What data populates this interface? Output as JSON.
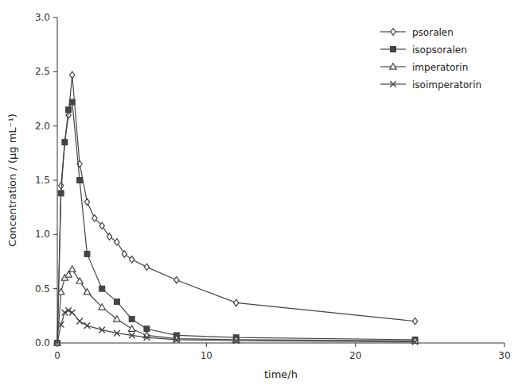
{
  "chart_data": {
    "type": "line",
    "xlabel": "time/h",
    "ylabel": "Concentration / (μg mL⁻¹)",
    "series": [
      {
        "name": "psoralen",
        "color": "#444444",
        "marker": "diamond-open",
        "x": [
          0,
          0.25,
          0.5,
          0.75,
          1.0,
          1.5,
          2.0,
          2.5,
          3.0,
          3.5,
          4.0,
          4.5,
          5.0,
          6.0,
          8.0,
          12.0,
          24.0
        ],
        "values": [
          0,
          1.45,
          1.85,
          2.1,
          2.47,
          1.65,
          1.3,
          1.15,
          1.08,
          0.98,
          0.93,
          0.82,
          0.77,
          0.7,
          0.58,
          0.37,
          0.2
        ]
      },
      {
        "name": "isopsoralen",
        "color": "#444444",
        "marker": "square",
        "x": [
          0,
          0.25,
          0.5,
          0.75,
          1.0,
          1.5,
          2.0,
          3.0,
          4.0,
          5.0,
          6.0,
          8.0,
          12.0,
          24.0
        ],
        "values": [
          0,
          1.38,
          1.85,
          2.15,
          2.22,
          1.5,
          0.82,
          0.5,
          0.38,
          0.22,
          0.13,
          0.07,
          0.05,
          0.03
        ]
      },
      {
        "name": "imperatorin",
        "color": "#444444",
        "marker": "triangle-open",
        "x": [
          0,
          0.25,
          0.5,
          0.75,
          1.0,
          1.5,
          2.0,
          3.0,
          4.0,
          5.0,
          6.0,
          8.0,
          12.0,
          24.0
        ],
        "values": [
          0,
          0.47,
          0.6,
          0.63,
          0.68,
          0.57,
          0.47,
          0.33,
          0.22,
          0.13,
          0.07,
          0.04,
          0.03,
          0.02
        ]
      },
      {
        "name": "isoimperatorin",
        "color": "#444444",
        "marker": "x",
        "x": [
          0,
          0.25,
          0.5,
          0.75,
          1.0,
          1.5,
          2.0,
          3.0,
          4.0,
          5.0,
          6.0,
          8.0,
          12.0,
          24.0
        ],
        "values": [
          0,
          0.17,
          0.28,
          0.3,
          0.28,
          0.2,
          0.16,
          0.12,
          0.09,
          0.07,
          0.05,
          0.03,
          0.02,
          0.01
        ]
      }
    ],
    "xlim": [
      0,
      30
    ],
    "ylim": [
      0,
      3.0
    ],
    "xticks": [
      0,
      10,
      20,
      30
    ],
    "yticks": [
      {
        "value": 0,
        "label": "0.0"
      },
      0.5,
      {
        "value": 1.0,
        "label": "1.0"
      },
      1.5,
      {
        "value": 2.0,
        "label": "2.0"
      },
      2.5,
      {
        "value": 3.0,
        "label": "3.0"
      }
    ],
    "grid": false,
    "legend": "upper-right"
  }
}
